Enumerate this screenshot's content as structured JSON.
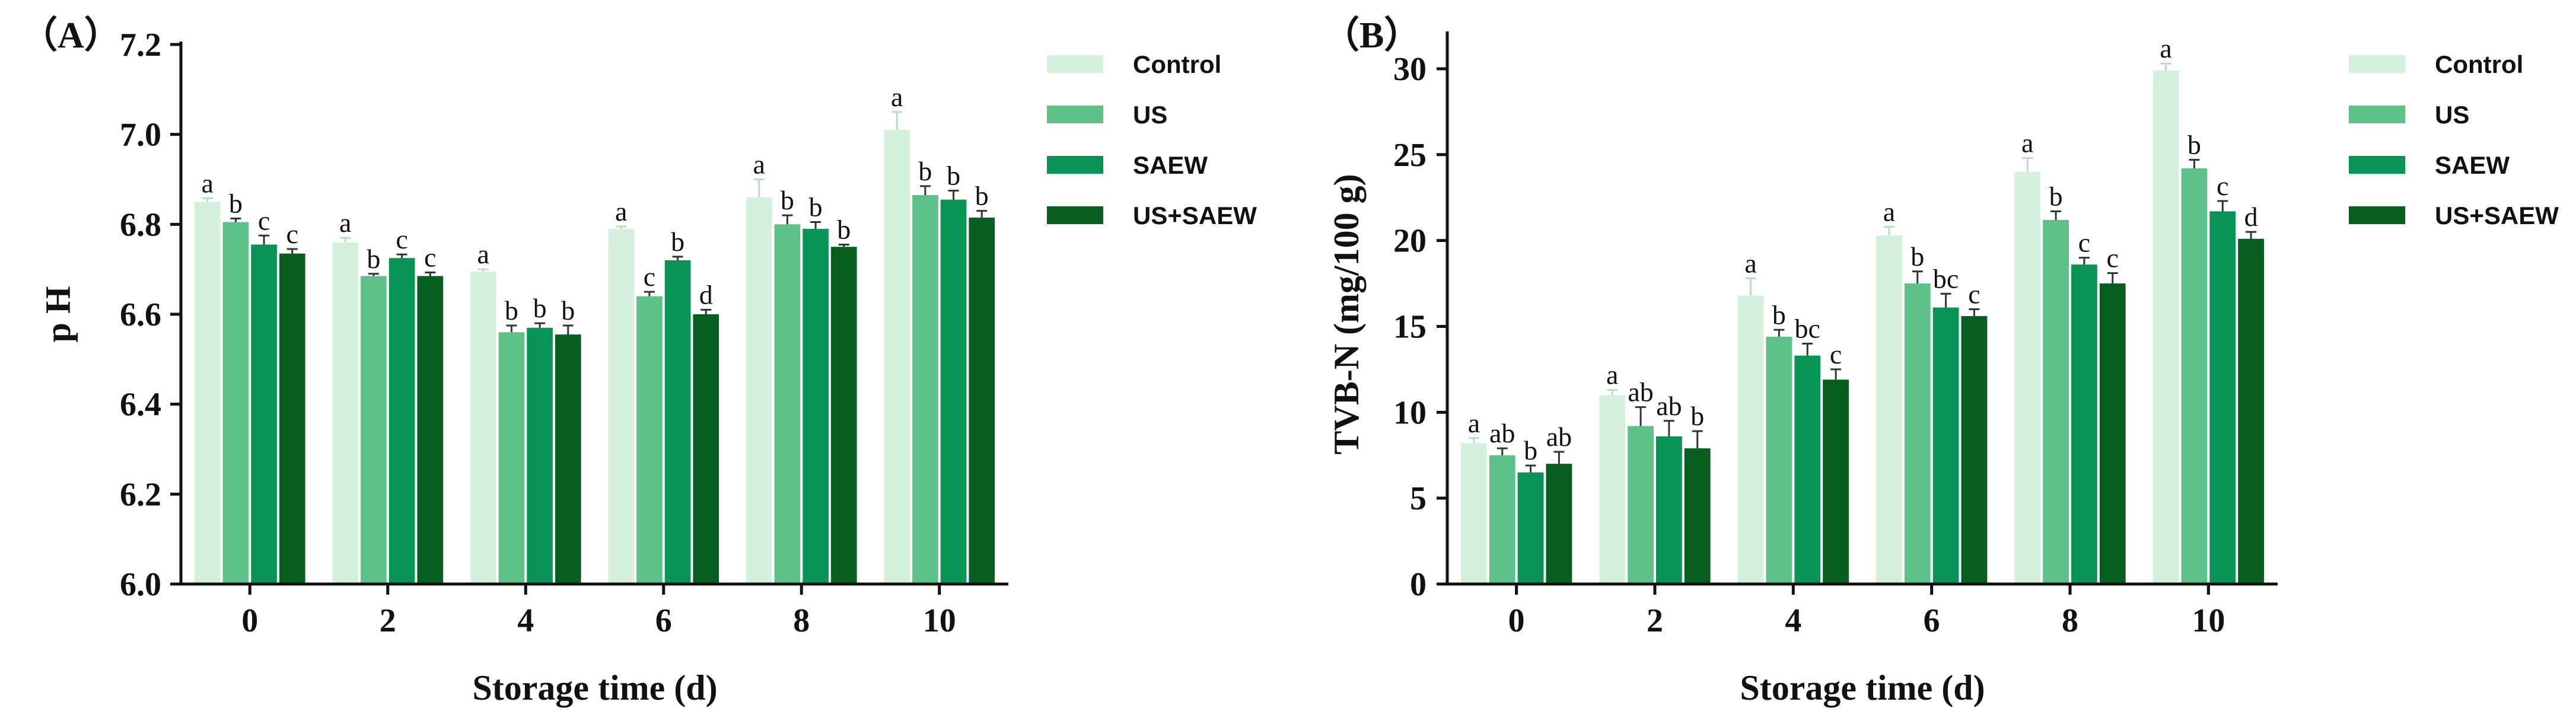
{
  "chart_data": [
    {
      "type": "bar",
      "panel_label": "（A）",
      "xlabel": "Storage time (d)",
      "ylabel": "p H",
      "categories": [
        "0",
        "2",
        "4",
        "6",
        "8",
        "10"
      ],
      "ylim": [
        6.0,
        7.2
      ],
      "yticks": [
        6.0,
        6.2,
        6.4,
        6.6,
        6.8,
        7.0,
        7.2
      ],
      "ytick_labels": [
        "6.0",
        "6.2",
        "6.4",
        "6.6",
        "6.8",
        "7.0",
        "7.2"
      ],
      "legend_position": "top-right",
      "series": [
        {
          "name": "Control",
          "color": "#d5f0dc",
          "values": [
            6.85,
            6.76,
            6.695,
            6.79,
            6.86,
            7.01
          ],
          "errors": [
            0.008,
            0.01,
            0.005,
            0.005,
            0.04,
            0.04
          ],
          "labels": [
            "a",
            "a",
            "a",
            "a",
            "a",
            "a"
          ]
        },
        {
          "name": "US",
          "color": "#5ec18a",
          "values": [
            6.805,
            6.685,
            6.56,
            6.64,
            6.8,
            6.865
          ],
          "errors": [
            0.008,
            0.005,
            0.015,
            0.01,
            0.02,
            0.02
          ],
          "labels": [
            "b",
            "b",
            "b",
            "c",
            "b",
            "b"
          ]
        },
        {
          "name": "SAEW",
          "color": "#079455",
          "values": [
            6.755,
            6.725,
            6.57,
            6.72,
            6.79,
            6.855
          ],
          "errors": [
            0.02,
            0.008,
            0.01,
            0.008,
            0.015,
            0.02
          ],
          "labels": [
            "c",
            "c",
            "b",
            "b",
            "b",
            "b"
          ]
        },
        {
          "name": "US+SAEW",
          "color": "#075e20",
          "values": [
            6.735,
            6.685,
            6.555,
            6.6,
            6.75,
            6.815
          ],
          "errors": [
            0.01,
            0.008,
            0.02,
            0.01,
            0.005,
            0.015
          ],
          "labels": [
            "c",
            "c",
            "b",
            "d",
            "b",
            "b"
          ]
        }
      ]
    },
    {
      "type": "bar",
      "panel_label": "（B）",
      "xlabel": "Storage time (d)",
      "ylabel": "TVB-N (mg/100 g)",
      "categories": [
        "0",
        "2",
        "4",
        "6",
        "8",
        "10"
      ],
      "ylim": [
        0,
        32
      ],
      "yticks": [
        0,
        5,
        10,
        15,
        20,
        25,
        30
      ],
      "ytick_labels": [
        "0",
        "5",
        "10",
        "15",
        "20",
        "25",
        "30"
      ],
      "legend_position": "top-right",
      "series": [
        {
          "name": "Control",
          "color": "#d5f0dc",
          "values": [
            8.2,
            11.0,
            16.8,
            20.3,
            24.0,
            29.9
          ],
          "errors": [
            0.3,
            0.3,
            1.0,
            0.5,
            0.8,
            0.4
          ],
          "labels": [
            "a",
            "a",
            "a",
            "a",
            "a",
            "a"
          ]
        },
        {
          "name": "US",
          "color": "#5ec18a",
          "values": [
            7.5,
            9.2,
            14.4,
            17.5,
            21.2,
            24.2
          ],
          "errors": [
            0.4,
            1.1,
            0.4,
            0.7,
            0.5,
            0.5
          ],
          "labels": [
            "ab",
            "ab",
            "b",
            "b",
            "b",
            "b"
          ]
        },
        {
          "name": "SAEW",
          "color": "#079455",
          "values": [
            6.5,
            8.6,
            13.3,
            16.1,
            18.6,
            21.7
          ],
          "errors": [
            0.4,
            0.9,
            0.7,
            0.8,
            0.4,
            0.6
          ],
          "labels": [
            "b",
            "ab",
            "bc",
            "bc",
            "c",
            "c"
          ]
        },
        {
          "name": "US+SAEW",
          "color": "#075e20",
          "values": [
            7.0,
            7.9,
            11.9,
            15.6,
            17.5,
            20.1
          ],
          "errors": [
            0.7,
            1.0,
            0.6,
            0.4,
            0.6,
            0.4
          ],
          "labels": [
            "ab",
            "b",
            "c",
            "c",
            "c",
            "d"
          ]
        }
      ]
    }
  ]
}
